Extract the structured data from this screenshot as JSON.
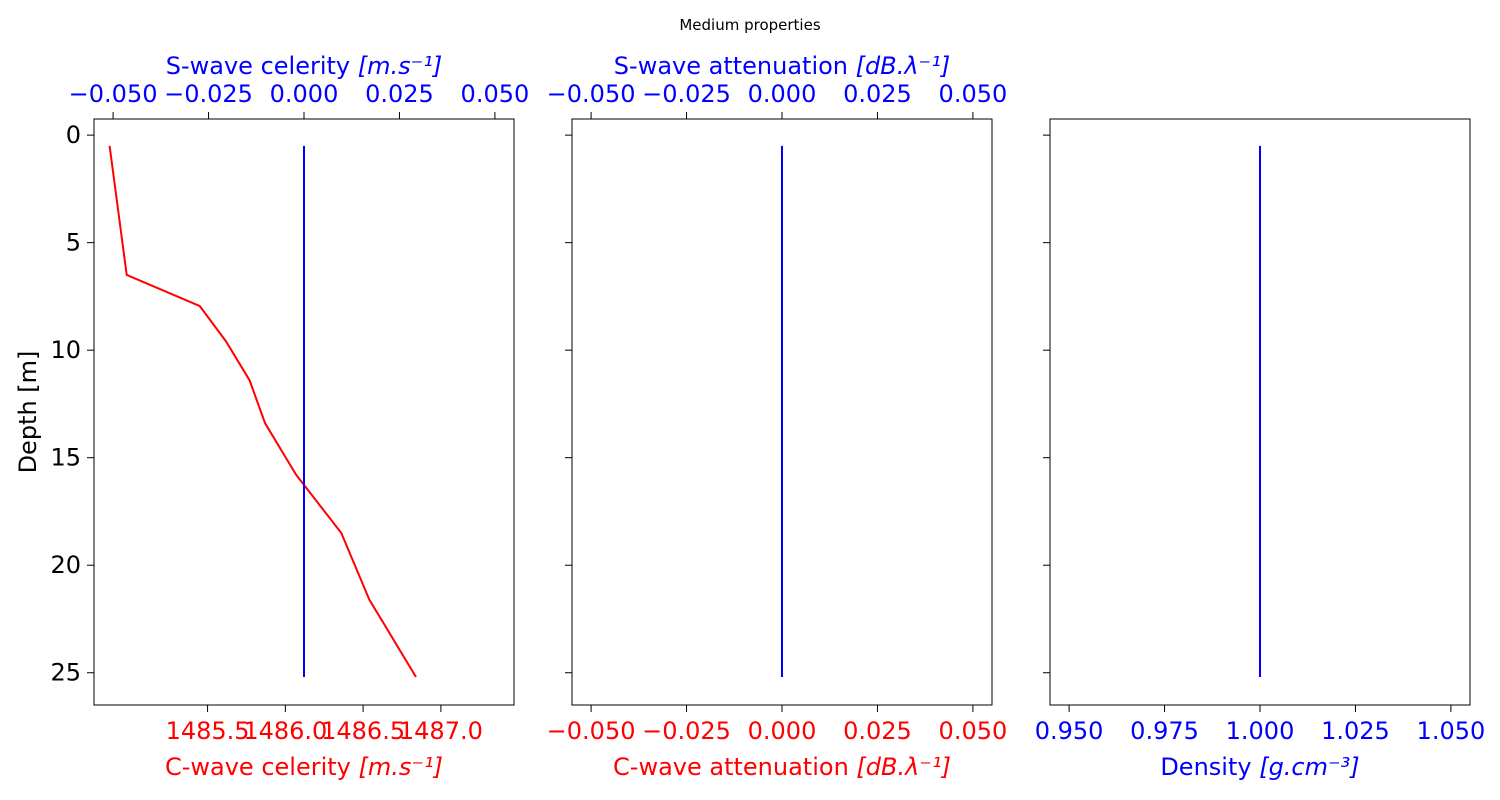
{
  "title": "Medium properties",
  "colors": {
    "c_axis": "#ff0000",
    "s_axis": "#0000ff",
    "frame": "#000000"
  },
  "chart_data": [
    {
      "type": "line",
      "ylabel": "Depth [m]",
      "ylim": [
        26.5,
        -0.75
      ],
      "y_inverted": true,
      "yticks": [
        0,
        5,
        10,
        15,
        20,
        25
      ],
      "bottom_axis": {
        "label_text": "C-wave celerity ",
        "label_unit": "[m.s⁻¹]",
        "color": "#ff0000",
        "xlim": [
          1484.77,
          1487.47
        ],
        "ticks": [
          1485.5,
          1486.0,
          1486.5,
          1487.0
        ],
        "tick_labels": [
          "1485.5",
          "1486.0",
          "1486.5",
          "1487.0"
        ]
      },
      "top_axis": {
        "label_text": "S-wave celerity ",
        "label_unit": "[m.s⁻¹]",
        "color": "#0000ff",
        "xlim": [
          -0.055,
          0.055
        ],
        "ticks": [
          -0.05,
          -0.025,
          0.0,
          0.025,
          0.05
        ],
        "tick_labels": [
          "−0.050",
          "−0.025",
          "0.000",
          "0.025",
          "0.050"
        ]
      },
      "series": [
        {
          "axis": "bottom",
          "color": "#ff0000",
          "x": [
            1484.87,
            1484.98,
            1485.45,
            1485.62,
            1485.77,
            1485.87,
            1486.07,
            1486.36,
            1486.54,
            1486.84
          ],
          "y": [
            0.5,
            6.5,
            7.95,
            9.6,
            11.4,
            13.4,
            15.8,
            18.5,
            21.6,
            25.2
          ]
        },
        {
          "axis": "top",
          "color": "#0000ff",
          "x": [
            0.0,
            0.0
          ],
          "y": [
            0.5,
            25.2
          ]
        }
      ]
    },
    {
      "type": "line",
      "ylim": [
        26.5,
        -0.75
      ],
      "y_inverted": true,
      "yticks": [
        0,
        5,
        10,
        15,
        20,
        25
      ],
      "bottom_axis": {
        "label_text": "C-wave attenuation ",
        "label_unit": "[dB.λ⁻¹]",
        "color": "#ff0000",
        "xlim": [
          -0.055,
          0.055
        ],
        "ticks": [
          -0.05,
          -0.025,
          0.0,
          0.025,
          0.05
        ],
        "tick_labels": [
          "−0.050",
          "−0.025",
          "0.000",
          "0.025",
          "0.050"
        ]
      },
      "top_axis": {
        "label_text": "S-wave attenuation ",
        "label_unit": "[dB.λ⁻¹]",
        "color": "#0000ff",
        "xlim": [
          -0.055,
          0.055
        ],
        "ticks": [
          -0.05,
          -0.025,
          0.0,
          0.025,
          0.05
        ],
        "tick_labels": [
          "−0.050",
          "−0.025",
          "0.000",
          "0.025",
          "0.050"
        ]
      },
      "series": [
        {
          "axis": "top",
          "color": "#0000ff",
          "x": [
            0.0,
            0.0
          ],
          "y": [
            0.5,
            25.2
          ]
        }
      ]
    },
    {
      "type": "line",
      "ylim": [
        26.5,
        -0.75
      ],
      "y_inverted": true,
      "yticks": [
        0,
        5,
        10,
        15,
        20,
        25
      ],
      "bottom_axis": {
        "label_text": "Density ",
        "label_unit": "[g.cm⁻³]",
        "color": "#0000ff",
        "xlim": [
          0.945,
          1.055
        ],
        "ticks": [
          0.95,
          0.975,
          1.0,
          1.025,
          1.05
        ],
        "tick_labels": [
          "0.950",
          "0.975",
          "1.000",
          "1.025",
          "1.050"
        ]
      },
      "series": [
        {
          "axis": "bottom",
          "color": "#0000ff",
          "x": [
            1.0,
            1.0
          ],
          "y": [
            0.5,
            25.2
          ]
        }
      ]
    }
  ]
}
